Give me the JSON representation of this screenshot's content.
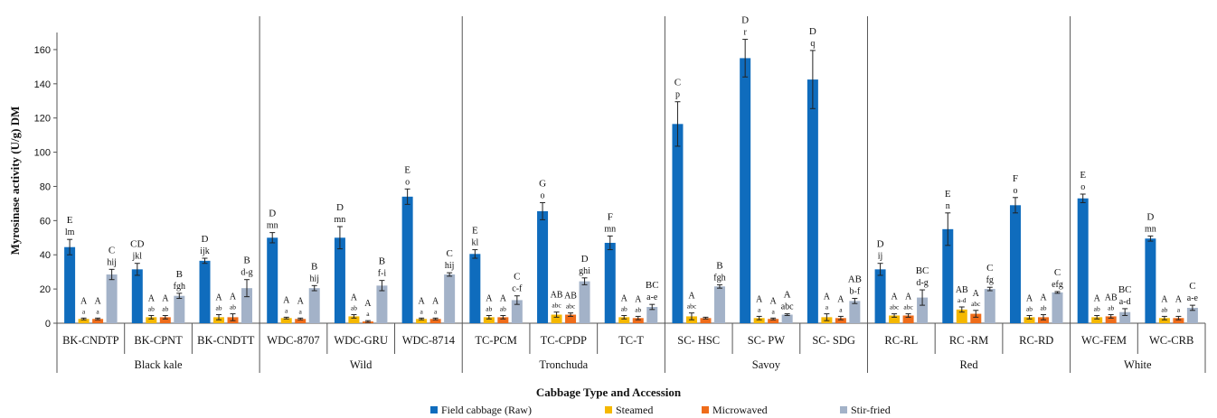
{
  "chart_data": {
    "type": "bar",
    "ylabel": "Myrosinase activity (U/g) DM",
    "xlabel": "Cabbage Type and Accession",
    "ylim": [
      0,
      170
    ],
    "yticks": [
      0,
      20,
      40,
      60,
      80,
      100,
      120,
      140,
      160
    ],
    "legend_position": "bottom",
    "grid": false,
    "series": [
      {
        "name": "Field cabbage (Raw)",
        "color": "#0f6cbd"
      },
      {
        "name": "Steamed",
        "color": "#f5b800"
      },
      {
        "name": "Microwaved",
        "color": "#ef6c1a"
      },
      {
        "name": "Stir-fried",
        "color": "#a3b2c8"
      }
    ],
    "groups": [
      {
        "name": "Black kale",
        "accessions": [
          {
            "label": "BK-CNDTP",
            "values": [
              44.5,
              2.5,
              2.5,
              28.5
            ],
            "errors": [
              4.5,
              0.5,
              0.5,
              3
            ],
            "upper": [
              "E",
              "A",
              "A",
              "C"
            ],
            "lower": [
              "lm",
              "a",
              "a",
              "hij"
            ]
          },
          {
            "label": "BK-CPNT",
            "values": [
              31.5,
              3.5,
              3.5,
              16
            ],
            "errors": [
              3.5,
              1,
              1,
              1.5
            ],
            "upper": [
              "CD",
              "A",
              "A",
              "B"
            ],
            "lower": [
              "jkl",
              "ab",
              "ab",
              "fgh"
            ]
          },
          {
            "label": "BK-CNDTT",
            "values": [
              36.5,
              3.5,
              3.5,
              20.5
            ],
            "errors": [
              1.5,
              1.5,
              2,
              5
            ],
            "upper": [
              "D",
              "A",
              "A",
              "B"
            ],
            "lower": [
              "ijk",
              "ab",
              "ab",
              "d-g"
            ]
          }
        ]
      },
      {
        "name": "Wild",
        "accessions": [
          {
            "label": "WDC-8707",
            "values": [
              50,
              3,
              2.5,
              20.5
            ],
            "errors": [
              3,
              0.5,
              0.5,
              1.5
            ],
            "upper": [
              "D",
              "A",
              "A",
              "B"
            ],
            "lower": [
              "mn",
              "a",
              "a",
              "hij"
            ]
          },
          {
            "label": "WDC-GRU",
            "values": [
              50,
              4,
              1,
              22
            ],
            "errors": [
              6.5,
              1,
              0.5,
              3
            ],
            "upper": [
              "D",
              "A",
              "A",
              "B"
            ],
            "lower": [
              "mn",
              "ab",
              "a",
              "f-i"
            ]
          },
          {
            "label": "WDC-8714",
            "values": [
              74,
              2.5,
              2.5,
              28.5
            ],
            "errors": [
              4.5,
              0.5,
              0.5,
              1
            ],
            "upper": [
              "E",
              "A",
              "A",
              "C"
            ],
            "lower": [
              "o",
              "a",
              "a",
              "hij"
            ]
          }
        ]
      },
      {
        "name": "Tronchuda",
        "accessions": [
          {
            "label": "TC-PCM",
            "values": [
              40.5,
              3.5,
              3.5,
              13.5
            ],
            "errors": [
              2.5,
              1,
              1,
              2.5
            ],
            "upper": [
              "E",
              "A",
              "A",
              "C"
            ],
            "lower": [
              "kl",
              "ab",
              "ab",
              "c-f"
            ]
          },
          {
            "label": "TC-CPDP",
            "values": [
              65.5,
              5,
              5,
              24.5
            ],
            "errors": [
              5,
              1.5,
              1,
              2
            ],
            "upper": [
              "G",
              "AB",
              "AB",
              "D"
            ],
            "lower": [
              "o",
              "abc",
              "abc",
              "ghi"
            ]
          },
          {
            "label": "TC-T",
            "values": [
              47,
              3.5,
              3,
              9.5
            ],
            "errors": [
              4,
              1,
              1,
              1.5
            ],
            "upper": [
              "F",
              "A",
              "A",
              "BC"
            ],
            "lower": [
              "mn",
              "ab",
              "ab",
              "a-e"
            ]
          }
        ]
      },
      {
        "name": "Savoy",
        "accessions": [
          {
            "label": "SC- HSC",
            "values": [
              116.5,
              4,
              3,
              21.5
            ],
            "errors": [
              13,
              2,
              0.5,
              1
            ],
            "upper": [
              "C",
              "A",
              "",
              "B"
            ],
            "lower": [
              "p",
              "abc",
              "",
              "fgh"
            ]
          },
          {
            "label": "SC- PW",
            "values": [
              155,
              3,
              2.5,
              5
            ],
            "errors": [
              11,
              1,
              0.5,
              0.5
            ],
            "upper": [
              "D",
              "A",
              "A",
              "A"
            ],
            "lower": [
              "r",
              "a",
              "a",
              "abc"
            ]
          },
          {
            "label": "SC- SDG",
            "values": [
              142.5,
              3.5,
              3,
              13
            ],
            "errors": [
              17,
              2,
              1,
              1.5
            ],
            "upper": [
              "D",
              "A",
              "A",
              "AB"
            ],
            "lower": [
              "q",
              "a",
              "a",
              "b-f"
            ]
          }
        ]
      },
      {
        "name": "Red",
        "accessions": [
          {
            "label": "RC-RL",
            "values": [
              31.5,
              4.5,
              4.5,
              15
            ],
            "errors": [
              3.5,
              1,
              1,
              4.5
            ],
            "upper": [
              "D",
              "A",
              "A",
              "BC"
            ],
            "lower": [
              "ij",
              "abc",
              "abc",
              "d-g"
            ]
          },
          {
            "label": "RC -RM",
            "values": [
              55,
              8,
              5.5,
              20
            ],
            "errors": [
              9.5,
              1.5,
              2,
              1
            ],
            "upper": [
              "E",
              "AB",
              "A",
              "C"
            ],
            "lower": [
              "n",
              "a-d",
              "abc",
              "fg"
            ]
          },
          {
            "label": "RC-RD",
            "values": [
              69,
              3.5,
              3.5,
              18
            ],
            "errors": [
              4.5,
              1,
              1.5,
              0.5
            ],
            "upper": [
              "F",
              "A",
              "A",
              "C"
            ],
            "lower": [
              "o",
              "ab",
              "ab",
              "efg"
            ]
          }
        ]
      },
      {
        "name": "White",
        "accessions": [
          {
            "label": "WC-FEM",
            "values": [
              73,
              3.5,
              4,
              6.5
            ],
            "errors": [
              2.5,
              1,
              1,
              2
            ],
            "upper": [
              "E",
              "A",
              "AB",
              "BC"
            ],
            "lower": [
              "o",
              "ab",
              "ab",
              "a-d"
            ]
          },
          {
            "label": "WC-CRB",
            "values": [
              49.5,
              3,
              3,
              9
            ],
            "errors": [
              1.5,
              1,
              1,
              1.5
            ],
            "upper": [
              "D",
              "A",
              "A",
              "C"
            ],
            "lower": [
              "mn",
              "ab",
              "a",
              "a-e"
            ]
          }
        ]
      }
    ]
  }
}
